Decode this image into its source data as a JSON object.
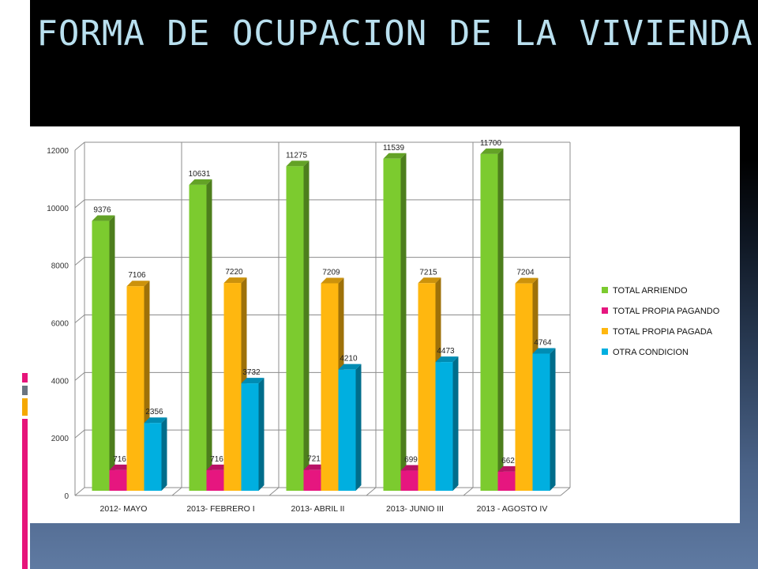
{
  "slide": {
    "title": "FORMA DE OCUPACION DE LA VIVIENDA"
  },
  "colors": {
    "accent_pink": "#e6147a",
    "accent_orange": "#f5a800",
    "accent_gray": "#6a7480",
    "sidebar_white": "#ffffff"
  },
  "chart_data": {
    "type": "bar",
    "style": "3d-clustered-column",
    "categories": [
      "2012- MAYO",
      "2013- FEBRERO I",
      "2013- ABRIL II",
      "2013- JUNIO III",
      "2013 - AGOSTO IV"
    ],
    "series": [
      {
        "name": "TOTAL ARRIENDO",
        "color": "#7ccb2f",
        "values": [
          9376,
          10631,
          11275,
          11539,
          11700
        ],
        "labels": [
          "9376",
          "10631",
          "11275",
          "11539",
          "11700"
        ]
      },
      {
        "name": "TOTAL PROPIA PAGANDO",
        "color": "#e6167f",
        "values": [
          716,
          716,
          721,
          699,
          662
        ],
        "labels": [
          "716",
          "716",
          "721",
          "699",
          "662"
        ]
      },
      {
        "name": "TOTAL PROPIA PAGADA",
        "color": "#ffb70f",
        "values": [
          7106,
          7220,
          7209,
          7215,
          7204
        ],
        "labels": [
          "7106",
          "7220",
          "7209",
          "7215",
          "7204"
        ]
      },
      {
        "name": "OTRA CONDICION",
        "color": "#00afe0",
        "values": [
          2356,
          3732,
          4210,
          4473,
          4764
        ],
        "labels": [
          "2356",
          "3732",
          "4210",
          "4473",
          "4764"
        ]
      }
    ],
    "ylim": [
      0,
      12000
    ],
    "yticks": [
      0,
      2000,
      4000,
      6000,
      8000,
      10000,
      12000
    ],
    "ytick_labels": [
      "0",
      "2000",
      "4000",
      "6000",
      "8000",
      "10000",
      "12000"
    ],
    "grid": true,
    "legend_position": "right"
  }
}
